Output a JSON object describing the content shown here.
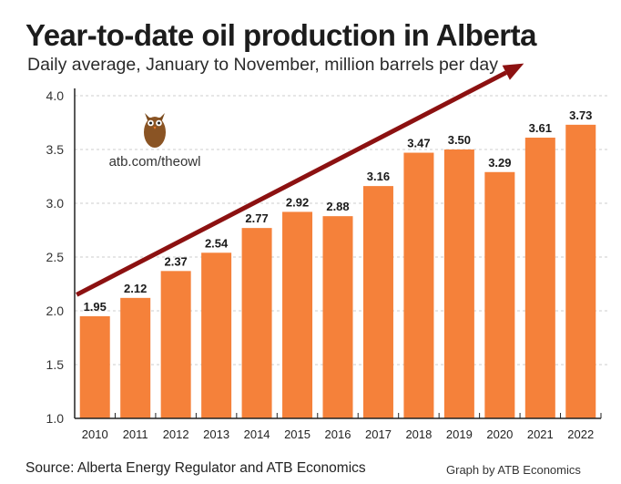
{
  "chart_data": {
    "type": "bar",
    "title": "Year-to-date oil production in Alberta",
    "subtitle": "Daily average, January to November, million barrels per day",
    "categories": [
      "2010",
      "2011",
      "2012",
      "2013",
      "2014",
      "2015",
      "2016",
      "2017",
      "2018",
      "2019",
      "2020",
      "2021",
      "2022"
    ],
    "values": [
      1.95,
      2.12,
      2.37,
      2.54,
      2.77,
      2.92,
      2.88,
      3.16,
      3.47,
      3.5,
      3.29,
      3.61,
      3.73
    ],
    "data_labels": [
      "1.95",
      "2.12",
      "2.37",
      "2.54",
      "2.77",
      "2.92",
      "2.88",
      "3.16",
      "3.47",
      "3.50",
      "3.29",
      "3.61",
      "3.73"
    ],
    "ylim": [
      1.0,
      4.0
    ],
    "yticks": [
      "1.0",
      "1.5",
      "2.0",
      "2.5",
      "3.0",
      "3.5",
      "4.0"
    ],
    "ytick_values": [
      1.0,
      1.5,
      2.0,
      2.5,
      3.0,
      3.5,
      4.0
    ],
    "xlabel": "",
    "ylabel": "",
    "grid": true,
    "annotation": "trend-arrow",
    "trend_arrow": {
      "from": [
        "2010",
        2.15
      ],
      "to": [
        "2021",
        4.3
      ]
    },
    "colors": {
      "bar": "#f5813a",
      "arrow": "#8c1111",
      "grid": "#cccccc"
    }
  },
  "logo": {
    "icon": "owl-icon",
    "text": "atb.com/theowl"
  },
  "footer": {
    "source": "Source: Alberta Energy Regulator and ATB Economics",
    "credit": "Graph by ATB Economics"
  }
}
